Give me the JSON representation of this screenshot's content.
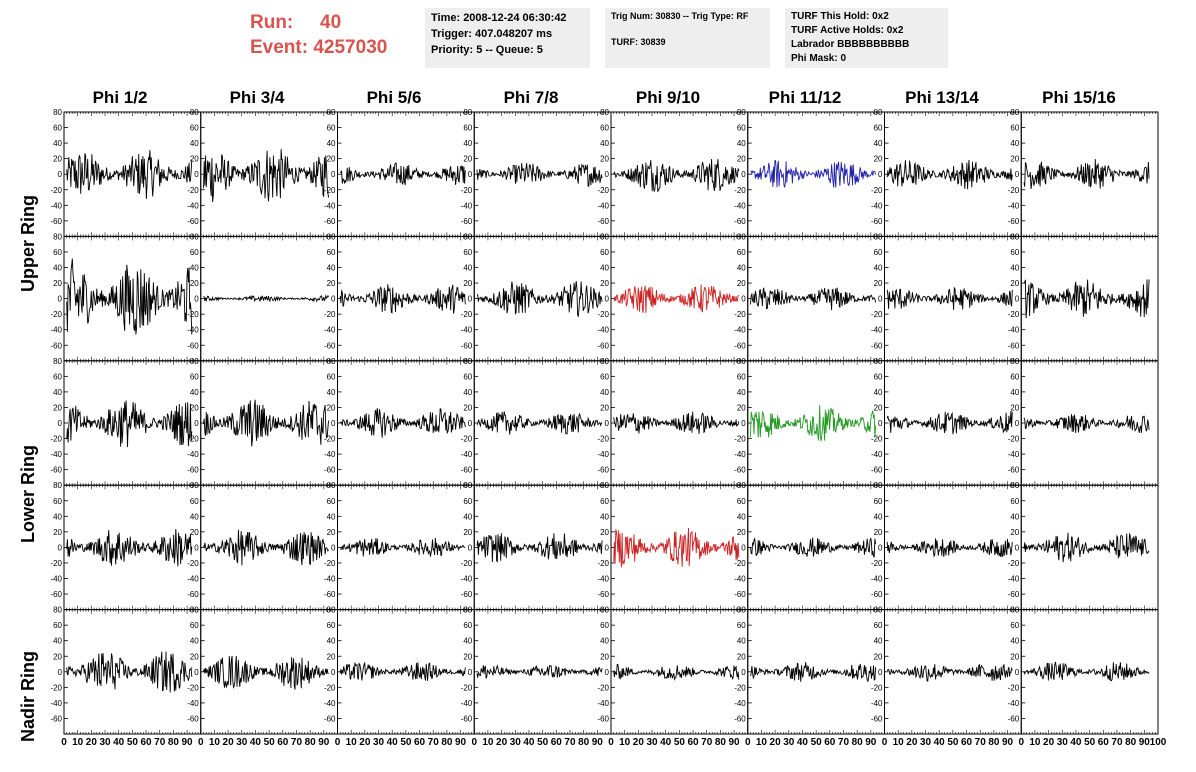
{
  "header": {
    "run_label": "Run:",
    "run_value": "40",
    "event_label": "Event:",
    "event_value": "4257030"
  },
  "info": {
    "time": "Time: 2008-12-24 06:30:42",
    "trigger": "Trigger: 407.048207 ms",
    "priority": "Priority: 5 -- Queue: 5",
    "trig_num": "Trig Num: 30830 -- Trig Type: RF",
    "turf": "TURF: 30839",
    "turf_hold": "TURF This Hold: 0x2",
    "turf_active": "TURF Active Holds: 0x2",
    "labrador": "Labrador BBBBBBBBBB",
    "phi_mask": "Phi Mask: 0"
  },
  "columns": [
    "Phi 1/2",
    "Phi 3/4",
    "Phi 5/6",
    "Phi 7/8",
    "Phi 9/10",
    "Phi 11/12",
    "Phi 13/14",
    "Phi 15/16"
  ],
  "ring_labels": [
    "Upper Ring",
    "Lower Ring",
    "Nadir Ring"
  ],
  "chart_data": {
    "type": "line",
    "grid_rows": 5,
    "grid_cols": 8,
    "xlim": [
      0,
      100
    ],
    "ylim": [
      -80,
      80
    ],
    "yticks": [
      -60,
      -40,
      -20,
      0,
      20,
      40,
      60,
      80
    ],
    "xticks": [
      0,
      10,
      20,
      30,
      40,
      50,
      60,
      70,
      80,
      90,
      100
    ],
    "default_color": "#000000",
    "highlight": [
      {
        "row": 0,
        "col": 5,
        "color": "#2222aa"
      },
      {
        "row": 1,
        "col": 4,
        "color": "#cc2222"
      },
      {
        "row": 2,
        "col": 5,
        "color": "#229922"
      },
      {
        "row": 3,
        "col": 4,
        "color": "#cc2222"
      }
    ],
    "amplitudes": [
      [
        25,
        30,
        12,
        12,
        18,
        15,
        15,
        15
      ],
      [
        40,
        3,
        15,
        18,
        15,
        12,
        12,
        20
      ],
      [
        25,
        25,
        15,
        12,
        12,
        18,
        12,
        10
      ],
      [
        20,
        18,
        10,
        15,
        20,
        10,
        10,
        15
      ],
      [
        22,
        18,
        10,
        8,
        8,
        10,
        10,
        10
      ]
    ]
  }
}
